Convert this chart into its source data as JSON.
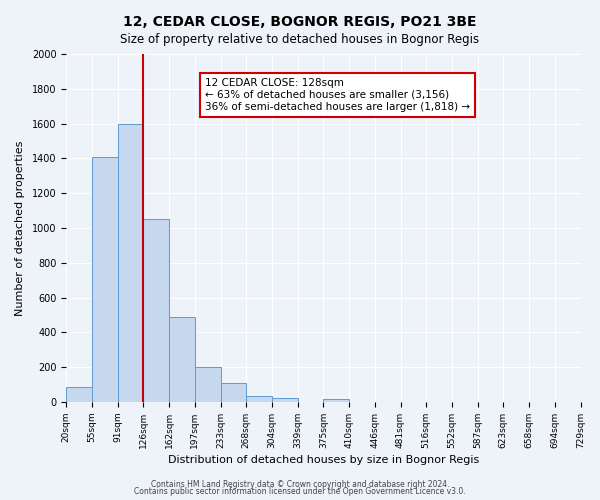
{
  "title": "12, CEDAR CLOSE, BOGNOR REGIS, PO21 3BE",
  "subtitle": "Size of property relative to detached houses in Bognor Regis",
  "xlabel": "Distribution of detached houses by size in Bognor Regis",
  "ylabel": "Number of detached properties",
  "bin_labels": [
    "20sqm",
    "55sqm",
    "91sqm",
    "126sqm",
    "162sqm",
    "197sqm",
    "233sqm",
    "268sqm",
    "304sqm",
    "339sqm",
    "375sqm",
    "410sqm",
    "446sqm",
    "481sqm",
    "516sqm",
    "552sqm",
    "587sqm",
    "623sqm",
    "658sqm",
    "694sqm",
    "729sqm"
  ],
  "bar_values": [
    85,
    1410,
    1600,
    1050,
    490,
    200,
    110,
    35,
    20,
    0,
    15,
    0,
    0,
    0,
    0,
    0,
    0,
    0,
    0,
    0
  ],
  "bar_color": "#c5d8ed",
  "bar_edge_color": "#5b9bd5",
  "red_line_x": 3,
  "annotation_title": "12 CEDAR CLOSE: 128sqm",
  "annotation_line1": "← 63% of detached houses are smaller (3,156)",
  "annotation_line2": "36% of semi-detached houses are larger (1,818) →",
  "annotation_box_color": "#ffffff",
  "annotation_box_edge": "#cc0000",
  "red_line_color": "#cc0000",
  "ylim": [
    0,
    2000
  ],
  "yticks": [
    0,
    200,
    400,
    600,
    800,
    1000,
    1200,
    1400,
    1600,
    1800,
    2000
  ],
  "background_color": "#eef2f9",
  "grid_color": "#ffffff",
  "footer_line1": "Contains HM Land Registry data © Crown copyright and database right 2024.",
  "footer_line2": "Contains public sector information licensed under the Open Government Licence v3.0."
}
